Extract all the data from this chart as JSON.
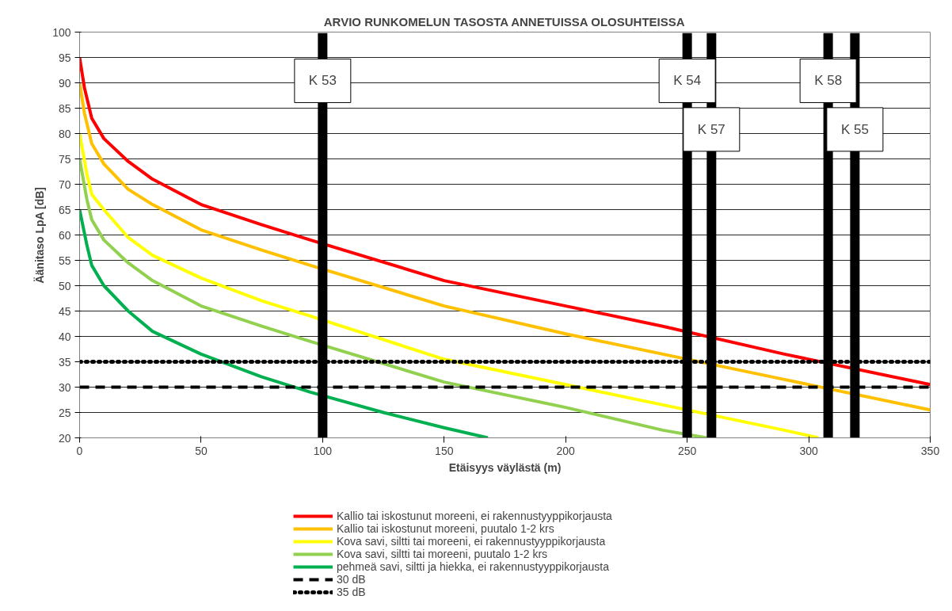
{
  "chart_data": {
    "type": "line",
    "title": "ARVIO RUNKOMELUN TASOSTA ANNETUISSA OLOSUHTEISSA",
    "xlabel": "Etäisyys väylästä (m)",
    "ylabel": "Äänitaso LpA [dB]",
    "xlim": [
      0,
      350
    ],
    "xticks": [
      0,
      50,
      100,
      150,
      200,
      250,
      300,
      350
    ],
    "ylim": [
      20,
      100
    ],
    "yticks": [
      20,
      25,
      30,
      35,
      40,
      45,
      50,
      55,
      60,
      65,
      70,
      75,
      80,
      85,
      90,
      95,
      100
    ],
    "grid": "y",
    "legend": "bottom",
    "line_style": "solid",
    "marker": "none",
    "series": [
      {
        "name": "Kallio tai iskostunut moreeni, ei rakennustyyppikorjausta",
        "color": "#ff0000",
        "x": [
          0,
          2,
          5,
          10,
          20,
          30,
          50,
          75,
          95,
          150,
          200,
          240,
          290,
          350
        ],
        "values": [
          95,
          89,
          83,
          79,
          74.5,
          71,
          66,
          62,
          59,
          51,
          46,
          42,
          36.5,
          30.5
        ]
      },
      {
        "name": "Kallio tai iskostunut moreeni, puutalo 1-2 krs",
        "color": "#ffc000",
        "x": [
          0,
          2,
          5,
          10,
          20,
          30,
          50,
          75,
          95,
          150,
          200,
          240,
          290,
          350
        ],
        "values": [
          90,
          84,
          78,
          74,
          69,
          66,
          61,
          57,
          54,
          46,
          40.5,
          36.5,
          31.5,
          25.5
        ]
      },
      {
        "name": "Kova savi, siltti tai moreeni, ei rakennustyyppikorjausta",
        "color": "#ffff00",
        "x": [
          0,
          3,
          5,
          10,
          20,
          30,
          50,
          75,
          95,
          150,
          200,
          240,
          290,
          304
        ],
        "values": [
          80,
          72,
          68,
          65,
          59.5,
          56,
          51.5,
          47,
          44,
          35.5,
          30.5,
          26.5,
          21.5,
          20
        ]
      },
      {
        "name": "Kova savi, siltti tai moreeni, puutalo 1-2 krs",
        "color": "#92d050",
        "x": [
          0,
          3,
          5,
          10,
          20,
          30,
          50,
          75,
          95,
          150,
          200,
          240,
          258
        ],
        "values": [
          75,
          67,
          63,
          59,
          54.5,
          51,
          46,
          42,
          39,
          31,
          26,
          21.5,
          20
        ]
      },
      {
        "name": "pehmeä savi, siltti ja hiekka, ei rakennustyyppikorjausta",
        "color": "#00b050",
        "x": [
          0,
          3,
          5,
          10,
          20,
          30,
          50,
          75,
          95,
          125,
          150,
          168
        ],
        "values": [
          65,
          58,
          54,
          50,
          45,
          41,
          36.5,
          32,
          29,
          25,
          22,
          20
        ]
      },
      {
        "name": "30 dB",
        "color": "#000000",
        "line_style": "dashed",
        "x": [
          0,
          350
        ],
        "values": [
          30,
          30
        ]
      },
      {
        "name": "35 dB",
        "color": "#000000",
        "line_style": "dotted",
        "x": [
          0,
          350
        ],
        "values": [
          35,
          35
        ]
      }
    ],
    "ref_lines": [
      {
        "axis": "x",
        "value": 100,
        "label": "K 53",
        "color": "#000000"
      },
      {
        "axis": "x",
        "value": 250,
        "label": "K 54",
        "color": "#000000"
      },
      {
        "axis": "x",
        "value": 260,
        "label": "K 57",
        "color": "#000000"
      },
      {
        "axis": "x",
        "value": 308,
        "label": "K 58",
        "color": "#000000"
      },
      {
        "axis": "x",
        "value": 319,
        "label": "K 55",
        "color": "#000000"
      }
    ]
  }
}
